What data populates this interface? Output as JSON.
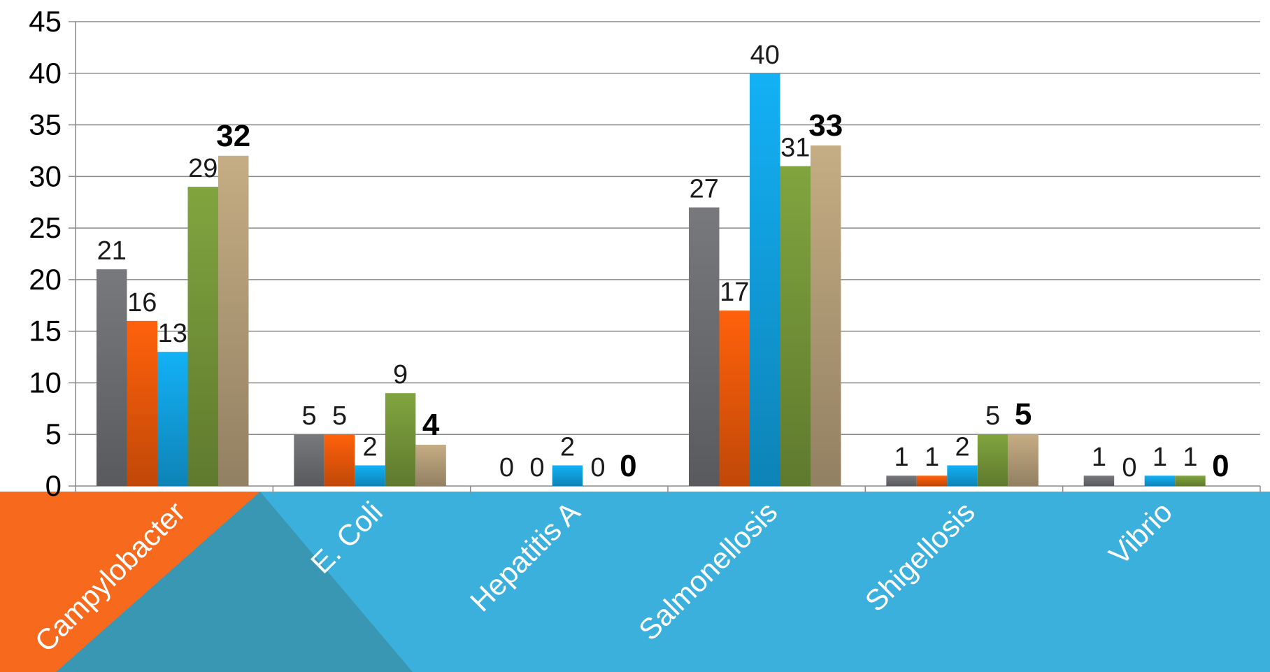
{
  "chart_data": {
    "type": "bar",
    "categories": [
      "Campylobacter",
      "E. Coli",
      "Hepatitis A",
      "Salmonellosis",
      "Shigellosis",
      "Vibrio"
    ],
    "series": [
      {
        "values": [
          21,
          5,
          0,
          27,
          1,
          1
        ],
        "color": "#6f7074"
      },
      {
        "values": [
          16,
          5,
          0,
          17,
          1,
          0
        ],
        "color": "#f05a0a"
      },
      {
        "values": [
          13,
          2,
          2,
          40,
          2,
          1
        ],
        "color": "#12a4e4"
      },
      {
        "values": [
          29,
          9,
          0,
          31,
          5,
          1
        ],
        "color": "#77983a"
      },
      {
        "values": [
          32,
          4,
          0,
          33,
          5,
          0
        ],
        "color": "#b6a07a"
      }
    ],
    "ylim": [
      0,
      45
    ],
    "yticks": [
      "0",
      "5",
      "10",
      "15",
      "20",
      "25",
      "30",
      "35",
      "40",
      "45"
    ],
    "grid": true,
    "bold_series_index": 4,
    "title": "",
    "xlabel": "",
    "ylabel": ""
  },
  "theme": {
    "band_color": "#3bb0dc",
    "accent_orange": "#f7691d",
    "accent_teal": "#3a97b4",
    "grid_color": "#8a8a8a"
  }
}
